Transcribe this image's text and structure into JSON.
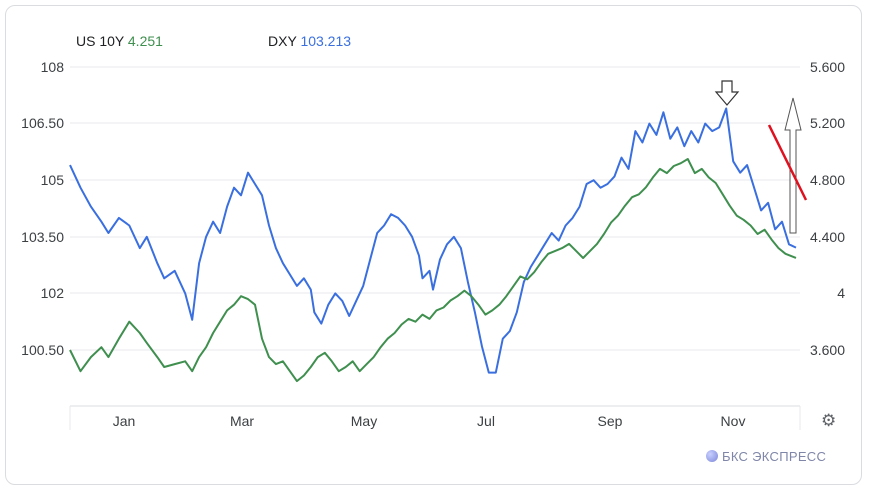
{
  "legend": {
    "us10y": {
      "label": "US 10Y",
      "value": "4.251",
      "color": "#3f8f4f"
    },
    "dxy": {
      "label": "DXY",
      "value": "103.213",
      "color": "#3a6fe0"
    }
  },
  "brand": "БКС ЭКСПРЕСС",
  "settings_icon": "gear-icon",
  "chart_data": {
    "type": "line",
    "left_axis": {
      "ticks": [
        "108",
        "106.50",
        "105",
        "103.50",
        "102",
        "100.50"
      ],
      "range": [
        99.3,
        108
      ]
    },
    "right_axis": {
      "ticks": [
        "5.600",
        "5.200",
        "4.800",
        "4.400",
        "4",
        "3.600"
      ],
      "range": [
        3.28,
        5.6
      ]
    },
    "x_labels": [
      "Jan",
      "Mar",
      "May",
      "Jul",
      "Sep",
      "Nov"
    ],
    "series": [
      {
        "name": "DXY",
        "axis": "left",
        "color": "#3a6fe0",
        "points": [
          [
            0.0,
            105.4
          ],
          [
            0.15,
            104.8
          ],
          [
            0.3,
            104.3
          ],
          [
            0.45,
            103.9
          ],
          [
            0.55,
            103.6
          ],
          [
            0.7,
            104.0
          ],
          [
            0.85,
            103.8
          ],
          [
            1.0,
            103.2
          ],
          [
            1.1,
            103.5
          ],
          [
            1.25,
            102.8
          ],
          [
            1.35,
            102.4
          ],
          [
            1.5,
            102.6
          ],
          [
            1.65,
            102.0
          ],
          [
            1.75,
            101.3
          ],
          [
            1.85,
            102.8
          ],
          [
            1.95,
            103.5
          ],
          [
            2.05,
            103.9
          ],
          [
            2.15,
            103.6
          ],
          [
            2.25,
            104.3
          ],
          [
            2.35,
            104.8
          ],
          [
            2.45,
            104.6
          ],
          [
            2.55,
            105.2
          ],
          [
            2.65,
            104.9
          ],
          [
            2.75,
            104.6
          ],
          [
            2.85,
            103.8
          ],
          [
            2.95,
            103.2
          ],
          [
            3.05,
            102.8
          ],
          [
            3.15,
            102.5
          ],
          [
            3.25,
            102.2
          ],
          [
            3.35,
            102.4
          ],
          [
            3.45,
            102.1
          ],
          [
            3.5,
            101.5
          ],
          [
            3.6,
            101.2
          ],
          [
            3.7,
            101.7
          ],
          [
            3.8,
            102.0
          ],
          [
            3.9,
            101.8
          ],
          [
            4.0,
            101.4
          ],
          [
            4.1,
            101.8
          ],
          [
            4.2,
            102.2
          ],
          [
            4.3,
            102.9
          ],
          [
            4.4,
            103.6
          ],
          [
            4.5,
            103.8
          ],
          [
            4.6,
            104.1
          ],
          [
            4.7,
            104.0
          ],
          [
            4.8,
            103.8
          ],
          [
            4.9,
            103.5
          ],
          [
            5.0,
            103.0
          ],
          [
            5.05,
            102.4
          ],
          [
            5.15,
            102.6
          ],
          [
            5.2,
            102.1
          ],
          [
            5.3,
            102.9
          ],
          [
            5.4,
            103.3
          ],
          [
            5.5,
            103.5
          ],
          [
            5.6,
            103.2
          ],
          [
            5.7,
            102.3
          ],
          [
            5.8,
            101.5
          ],
          [
            5.9,
            100.6
          ],
          [
            6.0,
            99.9
          ],
          [
            6.1,
            99.9
          ],
          [
            6.2,
            100.8
          ],
          [
            6.3,
            101.0
          ],
          [
            6.4,
            101.5
          ],
          [
            6.5,
            102.3
          ],
          [
            6.6,
            102.7
          ],
          [
            6.7,
            103.0
          ],
          [
            6.8,
            103.3
          ],
          [
            6.9,
            103.6
          ],
          [
            7.0,
            103.4
          ],
          [
            7.1,
            103.8
          ],
          [
            7.2,
            104.0
          ],
          [
            7.3,
            104.3
          ],
          [
            7.4,
            104.9
          ],
          [
            7.5,
            105.0
          ],
          [
            7.6,
            104.8
          ],
          [
            7.7,
            104.9
          ],
          [
            7.8,
            105.1
          ],
          [
            7.9,
            105.6
          ],
          [
            8.0,
            105.3
          ],
          [
            8.1,
            106.3
          ],
          [
            8.2,
            106.0
          ],
          [
            8.3,
            106.5
          ],
          [
            8.4,
            106.2
          ],
          [
            8.5,
            106.8
          ],
          [
            8.6,
            106.1
          ],
          [
            8.7,
            106.4
          ],
          [
            8.8,
            105.9
          ],
          [
            8.9,
            106.3
          ],
          [
            9.0,
            106.0
          ],
          [
            9.1,
            106.5
          ],
          [
            9.2,
            106.3
          ],
          [
            9.3,
            106.4
          ],
          [
            9.4,
            106.9
          ],
          [
            9.5,
            105.5
          ],
          [
            9.6,
            105.2
          ],
          [
            9.7,
            105.4
          ],
          [
            9.8,
            104.8
          ],
          [
            9.9,
            104.2
          ],
          [
            10.0,
            104.4
          ],
          [
            10.1,
            103.7
          ],
          [
            10.2,
            103.9
          ],
          [
            10.3,
            103.3
          ],
          [
            10.4,
            103.213
          ]
        ]
      },
      {
        "name": "US 10Y",
        "axis": "right",
        "color": "#3f8f4f",
        "points": [
          [
            0.0,
            3.6
          ],
          [
            0.15,
            3.45
          ],
          [
            0.3,
            3.55
          ],
          [
            0.45,
            3.62
          ],
          [
            0.55,
            3.55
          ],
          [
            0.7,
            3.68
          ],
          [
            0.85,
            3.8
          ],
          [
            1.0,
            3.72
          ],
          [
            1.1,
            3.65
          ],
          [
            1.25,
            3.55
          ],
          [
            1.35,
            3.48
          ],
          [
            1.5,
            3.5
          ],
          [
            1.65,
            3.52
          ],
          [
            1.75,
            3.45
          ],
          [
            1.85,
            3.55
          ],
          [
            1.95,
            3.62
          ],
          [
            2.05,
            3.72
          ],
          [
            2.15,
            3.8
          ],
          [
            2.25,
            3.88
          ],
          [
            2.35,
            3.92
          ],
          [
            2.45,
            3.98
          ],
          [
            2.55,
            3.96
          ],
          [
            2.65,
            3.92
          ],
          [
            2.75,
            3.68
          ],
          [
            2.85,
            3.55
          ],
          [
            2.95,
            3.5
          ],
          [
            3.05,
            3.52
          ],
          [
            3.15,
            3.45
          ],
          [
            3.25,
            3.38
          ],
          [
            3.35,
            3.42
          ],
          [
            3.45,
            3.48
          ],
          [
            3.55,
            3.55
          ],
          [
            3.65,
            3.58
          ],
          [
            3.75,
            3.52
          ],
          [
            3.85,
            3.45
          ],
          [
            3.95,
            3.48
          ],
          [
            4.05,
            3.52
          ],
          [
            4.15,
            3.45
          ],
          [
            4.25,
            3.5
          ],
          [
            4.35,
            3.55
          ],
          [
            4.45,
            3.62
          ],
          [
            4.55,
            3.68
          ],
          [
            4.65,
            3.72
          ],
          [
            4.75,
            3.78
          ],
          [
            4.85,
            3.82
          ],
          [
            4.95,
            3.8
          ],
          [
            5.05,
            3.85
          ],
          [
            5.15,
            3.82
          ],
          [
            5.25,
            3.88
          ],
          [
            5.35,
            3.9
          ],
          [
            5.45,
            3.95
          ],
          [
            5.55,
            3.98
          ],
          [
            5.65,
            4.02
          ],
          [
            5.75,
            3.98
          ],
          [
            5.85,
            3.92
          ],
          [
            5.95,
            3.85
          ],
          [
            6.05,
            3.88
          ],
          [
            6.15,
            3.92
          ],
          [
            6.25,
            3.98
          ],
          [
            6.35,
            4.05
          ],
          [
            6.45,
            4.12
          ],
          [
            6.55,
            4.1
          ],
          [
            6.65,
            4.15
          ],
          [
            6.75,
            4.22
          ],
          [
            6.85,
            4.28
          ],
          [
            6.95,
            4.3
          ],
          [
            7.05,
            4.32
          ],
          [
            7.15,
            4.35
          ],
          [
            7.25,
            4.3
          ],
          [
            7.35,
            4.25
          ],
          [
            7.45,
            4.3
          ],
          [
            7.55,
            4.35
          ],
          [
            7.65,
            4.42
          ],
          [
            7.75,
            4.5
          ],
          [
            7.85,
            4.55
          ],
          [
            7.95,
            4.62
          ],
          [
            8.05,
            4.68
          ],
          [
            8.15,
            4.7
          ],
          [
            8.25,
            4.75
          ],
          [
            8.35,
            4.82
          ],
          [
            8.45,
            4.88
          ],
          [
            8.55,
            4.85
          ],
          [
            8.65,
            4.9
          ],
          [
            8.75,
            4.92
          ],
          [
            8.85,
            4.95
          ],
          [
            8.95,
            4.85
          ],
          [
            9.05,
            4.88
          ],
          [
            9.15,
            4.82
          ],
          [
            9.25,
            4.78
          ],
          [
            9.35,
            4.7
          ],
          [
            9.45,
            4.62
          ],
          [
            9.55,
            4.55
          ],
          [
            9.65,
            4.52
          ],
          [
            9.75,
            4.48
          ],
          [
            9.85,
            4.42
          ],
          [
            9.95,
            4.45
          ],
          [
            10.05,
            4.38
          ],
          [
            10.15,
            4.32
          ],
          [
            10.25,
            4.28
          ],
          [
            10.4,
            4.251
          ]
        ]
      }
    ]
  }
}
